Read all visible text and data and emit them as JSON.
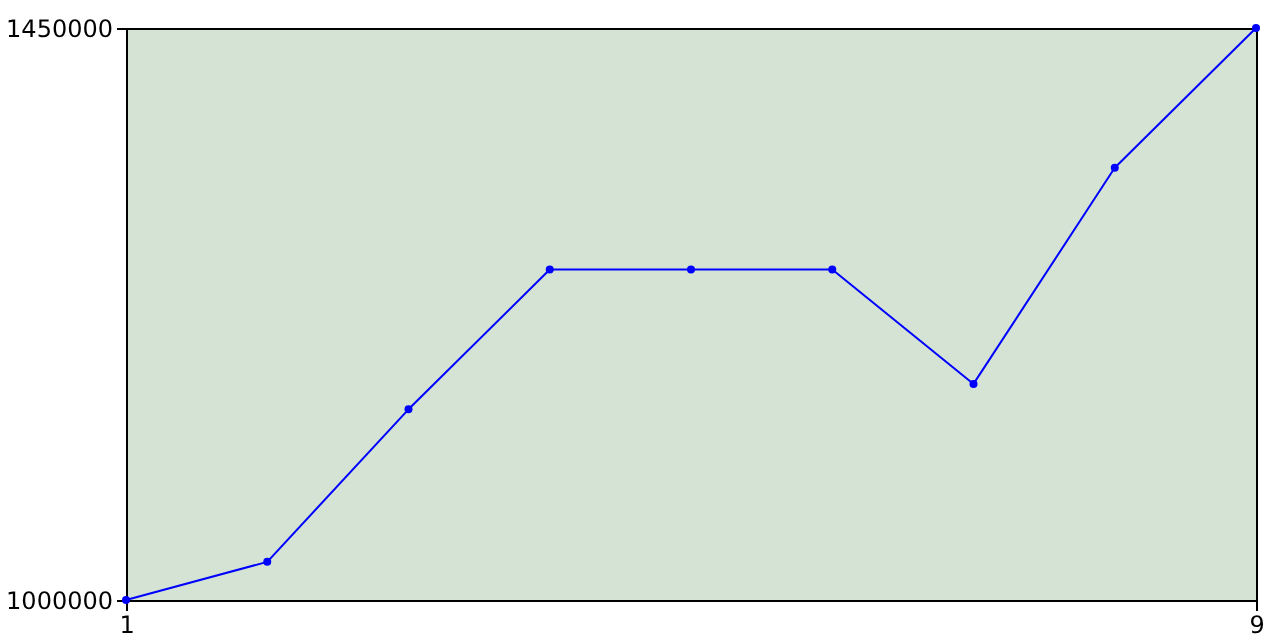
{
  "chart_data": {
    "type": "line",
    "x": [
      1,
      2,
      3,
      4,
      5,
      6,
      7,
      8,
      9
    ],
    "series": [
      {
        "color": "#0000ff",
        "values": [
          1000000,
          1030000,
          1150000,
          1260000,
          1260000,
          1260000,
          1170000,
          1340000,
          1450000
        ]
      }
    ],
    "xlim": [
      1,
      9
    ],
    "xticks": [
      1,
      9
    ],
    "ylim": [
      1000000,
      1450000
    ],
    "yticks": [
      1000000,
      1450000
    ],
    "grid": false,
    "marker": "circle",
    "line_style": "solid"
  }
}
